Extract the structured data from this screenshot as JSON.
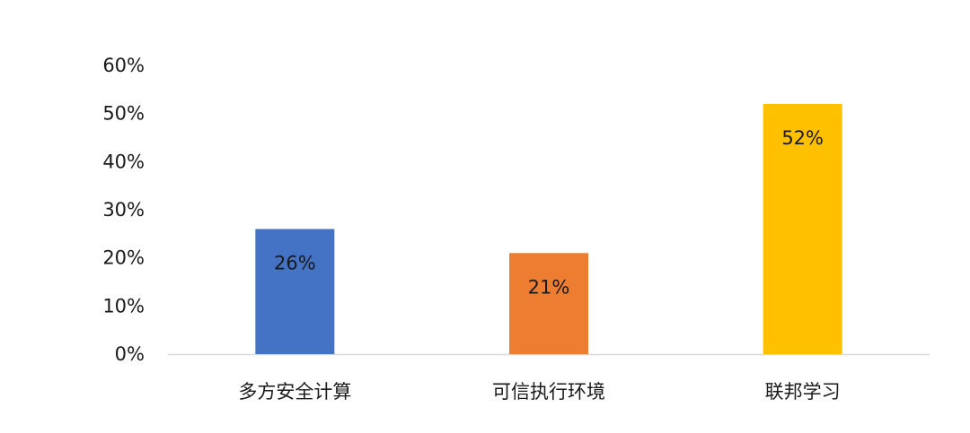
{
  "chart_data": {
    "type": "bar",
    "title": "",
    "xlabel": "",
    "ylabel": "",
    "categories": [
      "多方安全计算",
      "可信执行环境",
      "联邦学习"
    ],
    "values": [
      26,
      21,
      52
    ],
    "value_labels": [
      "26%",
      "21%",
      "52%"
    ],
    "colors": [
      "#4472C4",
      "#ED7D31",
      "#FFC000"
    ],
    "ylim": [
      0,
      60
    ],
    "yticks": [
      0,
      10,
      20,
      30,
      40,
      50,
      60
    ],
    "ytick_labels": [
      "0%",
      "10%",
      "20%",
      "30%",
      "40%",
      "50%",
      "60%"
    ],
    "grid": false,
    "legend": "none",
    "axis_color": "#d9d9d9"
  }
}
